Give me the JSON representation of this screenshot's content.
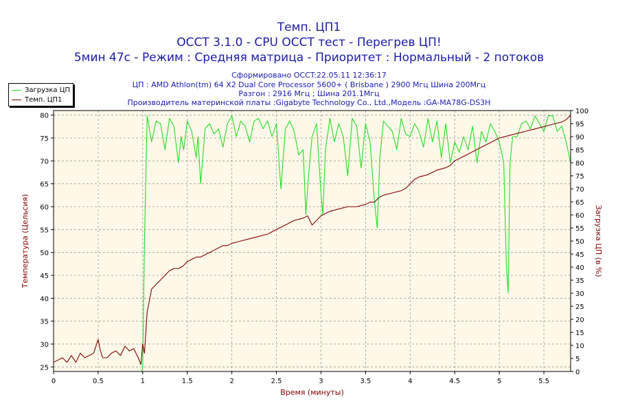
{
  "header": {
    "title1": "Темп. ЦП1",
    "title2": "OCCT 3.1.0 - CPU OCCT тест - Перегрев ЦП!",
    "title3": "5мин 47с - Режим : Средняя матрица - Приоритет : Нормальный - 2 потоков",
    "info1": "Сформировано OCCT:22.05.11 12:36:17",
    "info2": "ЦП : AMD Athlon(tm) 64 X2 Dual Core Processor 5600+ ( Brisbane ) 2900 Мгц Шина 200Мгц",
    "info3": "Разгон : 2916 Мгц ; Шина 201.1Мгц",
    "info4": "Производитель материнской платы :Gigabyte Technology Co., Ltd.,Модель :GA-MA78G-DS3H"
  },
  "chart_data": {
    "type": "line",
    "xlabel": "Время (минуты)",
    "ylabel_left": "Температура (Цельсия)",
    "ylabel_right": "Загрузка ЦП (в %)",
    "xlim": [
      0,
      5.8
    ],
    "ylim_left": [
      24,
      81
    ],
    "ylim_right": [
      0,
      100
    ],
    "x_ticks": [
      "0",
      "0.5",
      "1",
      "1.5",
      "2",
      "2.5",
      "3",
      "3.5",
      "4",
      "4.5",
      "5",
      "5.5"
    ],
    "y_left_ticks": [
      25,
      30,
      35,
      40,
      45,
      50,
      55,
      60,
      65,
      70,
      75,
      80
    ],
    "y_right_ticks": [
      0,
      5,
      10,
      15,
      20,
      25,
      30,
      35,
      40,
      45,
      50,
      55,
      60,
      65,
      70,
      75,
      80,
      85,
      90,
      95,
      100
    ],
    "grid": true,
    "legend_position": "top-left",
    "colors": {
      "cpu_load": "#22dd22",
      "temp": "#800000",
      "plot_bg": "#fdf8e8"
    },
    "series": [
      {
        "name": "Загрузка ЦП",
        "axis": "right",
        "x": [
          0,
          0.98,
          1.0,
          1.02,
          1.05,
          1.1,
          1.15,
          1.2,
          1.25,
          1.3,
          1.35,
          1.4,
          1.43,
          1.46,
          1.5,
          1.55,
          1.6,
          1.62,
          1.65,
          1.7,
          1.75,
          1.8,
          1.85,
          1.9,
          1.95,
          2.0,
          2.05,
          2.1,
          2.15,
          2.2,
          2.25,
          2.3,
          2.35,
          2.4,
          2.45,
          2.5,
          2.55,
          2.6,
          2.65,
          2.7,
          2.75,
          2.8,
          2.83,
          2.86,
          2.9,
          2.95,
          3.0,
          3.02,
          3.05,
          3.1,
          3.15,
          3.2,
          3.25,
          3.3,
          3.35,
          3.4,
          3.45,
          3.5,
          3.55,
          3.6,
          3.63,
          3.66,
          3.7,
          3.75,
          3.8,
          3.85,
          3.9,
          3.95,
          4.0,
          4.05,
          4.1,
          4.15,
          4.2,
          4.25,
          4.3,
          4.35,
          4.4,
          4.45,
          4.5,
          4.55,
          4.6,
          4.65,
          4.7,
          4.75,
          4.8,
          4.85,
          4.9,
          4.95,
          5.0,
          5.05,
          5.08,
          5.1,
          5.12,
          5.15,
          5.2,
          5.25,
          5.3,
          5.35,
          5.4,
          5.45,
          5.5,
          5.55,
          5.6,
          5.65,
          5.7,
          5.75,
          5.8
        ],
        "values": [
          0,
          0,
          1,
          50,
          98,
          88,
          96,
          95,
          85,
          97,
          94,
          80,
          90,
          85,
          96,
          92,
          82,
          90,
          72,
          93,
          95,
          91,
          93,
          86,
          95,
          98,
          90,
          96,
          94,
          88,
          96,
          97,
          93,
          96,
          90,
          95,
          70,
          93,
          96,
          92,
          83,
          85,
          60,
          75,
          90,
          95,
          68,
          60,
          85,
          97,
          88,
          95,
          90,
          75,
          97,
          94,
          78,
          95,
          88,
          65,
          55,
          82,
          96,
          94,
          92,
          85,
          97,
          91,
          90,
          95,
          92,
          86,
          97,
          88,
          96,
          82,
          95,
          80,
          88,
          84,
          90,
          85,
          94,
          80,
          92,
          88,
          95,
          92,
          88,
          80,
          40,
          30,
          80,
          90,
          90,
          95,
          96,
          93,
          98,
          95,
          92,
          98,
          98,
          92,
          94,
          88,
          80
        ]
      },
      {
        "name": "Темп. ЦП1",
        "axis": "left",
        "x": [
          0,
          0.05,
          0.1,
          0.15,
          0.2,
          0.25,
          0.3,
          0.35,
          0.4,
          0.45,
          0.5,
          0.52,
          0.55,
          0.6,
          0.65,
          0.7,
          0.75,
          0.8,
          0.85,
          0.9,
          0.95,
          0.98,
          1.0,
          1.02,
          1.05,
          1.08,
          1.1,
          1.15,
          1.2,
          1.25,
          1.3,
          1.35,
          1.4,
          1.45,
          1.5,
          1.55,
          1.6,
          1.65,
          1.7,
          1.75,
          1.8,
          1.85,
          1.9,
          1.95,
          2.0,
          2.1,
          2.2,
          2.3,
          2.4,
          2.5,
          2.6,
          2.7,
          2.8,
          2.85,
          2.9,
          2.95,
          3.0,
          3.05,
          3.1,
          3.2,
          3.3,
          3.4,
          3.5,
          3.55,
          3.6,
          3.65,
          3.7,
          3.8,
          3.9,
          3.95,
          4.0,
          4.05,
          4.1,
          4.2,
          4.3,
          4.4,
          4.45,
          4.5,
          4.6,
          4.7,
          4.8,
          4.9,
          5.0,
          5.1,
          5.2,
          5.3,
          5.4,
          5.5,
          5.6,
          5.7,
          5.75,
          5.8
        ],
        "values": [
          26,
          26.5,
          27,
          26,
          27.5,
          26,
          28,
          27,
          27.5,
          28,
          31,
          29,
          27,
          27,
          28,
          28.5,
          27.5,
          29.5,
          28.5,
          29,
          27,
          25.5,
          30,
          28,
          37,
          40,
          42,
          43,
          44,
          45,
          46,
          46.5,
          46.5,
          47,
          48,
          48.5,
          49,
          49,
          49.5,
          50,
          50.5,
          51,
          51.5,
          51.5,
          52,
          52.5,
          53,
          53.5,
          54,
          55,
          56,
          57,
          57.5,
          58,
          56,
          57,
          58,
          58.5,
          59,
          59.5,
          60,
          60,
          60.5,
          61,
          61,
          62,
          62.5,
          63,
          63.5,
          64,
          65,
          66,
          66.5,
          67,
          68,
          68.5,
          69,
          70,
          71,
          72,
          73,
          74,
          75,
          75.5,
          76,
          76.5,
          77,
          77.5,
          78,
          78.5,
          79,
          80
        ]
      }
    ]
  }
}
